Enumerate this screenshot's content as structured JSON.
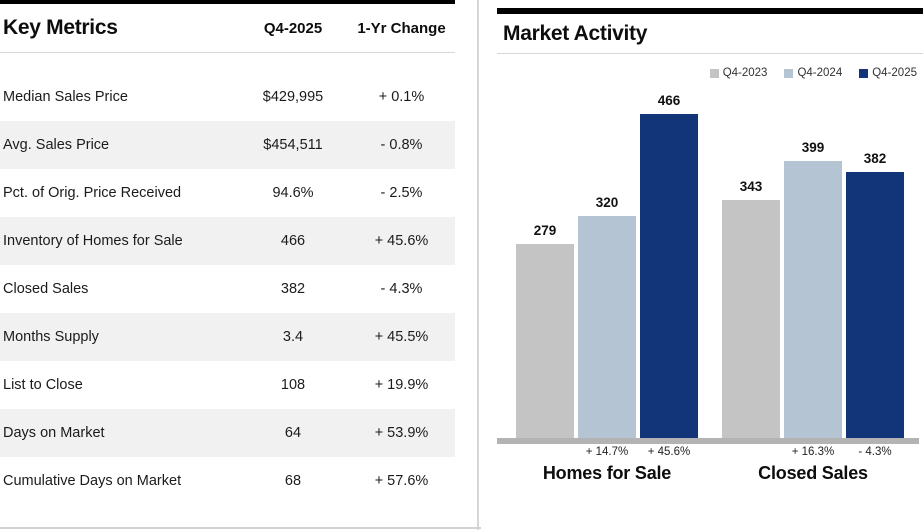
{
  "metrics_table": {
    "title": "Key Metrics",
    "columns": [
      "Q4-2025",
      "1-Yr Change"
    ],
    "rows": [
      {
        "label": "Median Sales Price",
        "value": "$429,995",
        "change": "+ 0.1%"
      },
      {
        "label": "Avg. Sales Price",
        "value": "$454,511",
        "change": "- 0.8%"
      },
      {
        "label": "Pct. of Orig. Price Received",
        "value": "94.6%",
        "change": "- 2.5%"
      },
      {
        "label": "Inventory of Homes for Sale",
        "value": "466",
        "change": "+ 45.6%"
      },
      {
        "label": "Closed Sales",
        "value": "382",
        "change": "- 4.3%"
      },
      {
        "label": "Months Supply",
        "value": "3.4",
        "change": "+ 45.5%"
      },
      {
        "label": "List to Close",
        "value": "108",
        "change": "+ 19.9%"
      },
      {
        "label": "Days on Market",
        "value": "64",
        "change": "+ 53.9%"
      },
      {
        "label": "Cumulative Days on Market",
        "value": "68",
        "change": "+ 57.6%"
      }
    ]
  },
  "chart_data": {
    "type": "bar",
    "title": "Market Activity",
    "categories": [
      "Homes for Sale",
      "Closed Sales"
    ],
    "series": [
      {
        "name": "Q4-2023",
        "color": "#c4c4c5",
        "values": [
          279,
          343
        ]
      },
      {
        "name": "Q4-2024",
        "color": "#b4c4d2",
        "values": [
          320,
          399
        ]
      },
      {
        "name": "Q4-2025",
        "color": "#123478",
        "values": [
          466,
          382
        ]
      }
    ],
    "pct_changes": [
      [
        "+ 14.7%",
        "+ 45.6%"
      ],
      [
        "+ 16.3%",
        "- 4.3%"
      ]
    ],
    "ylim": [
      0,
      480
    ],
    "grid": false,
    "legend_position": "top-right",
    "axis_color": "#b3b3b3"
  }
}
